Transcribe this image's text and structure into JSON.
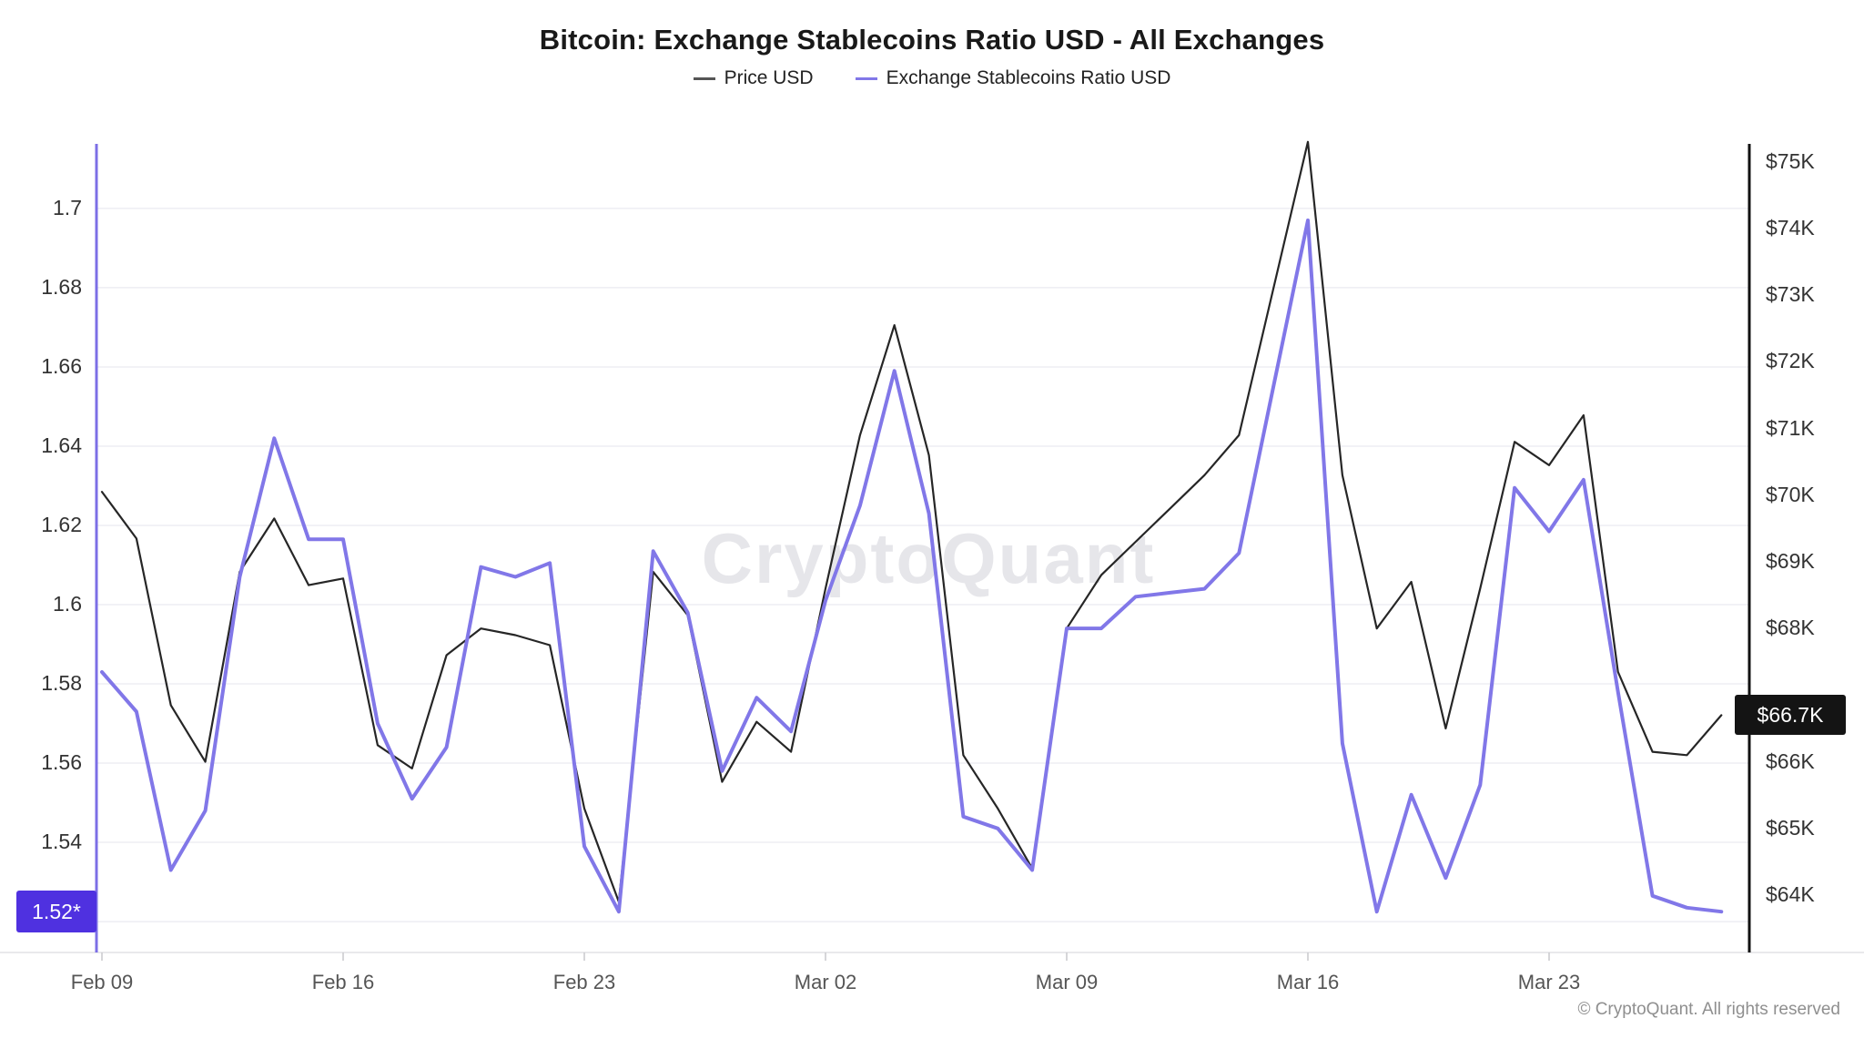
{
  "title": "Bitcoin: Exchange Stablecoins Ratio USD - All Exchanges",
  "legend": [
    {
      "label": "Price USD",
      "color": "#555555"
    },
    {
      "label": "Exchange Stablecoins Ratio USD",
      "color": "#8177e8"
    }
  ],
  "watermark": "CryptoQuant",
  "copyright": "© CryptoQuant. All rights reserved",
  "left_axis": {
    "badge": "1.52*",
    "badge_value": 1.5225,
    "badge_color": "#4f31e0",
    "ticks": [
      {
        "label": "1.7",
        "value": 1.7
      },
      {
        "label": "1.68",
        "value": 1.68
      },
      {
        "label": "1.66",
        "value": 1.66
      },
      {
        "label": "1.64",
        "value": 1.64
      },
      {
        "label": "1.62",
        "value": 1.62
      },
      {
        "label": "1.6",
        "value": 1.6
      },
      {
        "label": "1.58",
        "value": 1.58
      },
      {
        "label": "1.56",
        "value": 1.56
      },
      {
        "label": "1.54",
        "value": 1.54
      }
    ],
    "extra_grid_values": [
      1.52
    ],
    "axis_color": "#7c6fe6"
  },
  "right_axis": {
    "badge": "$66.7K",
    "badge_value": 66.7,
    "badge_color": "#141414",
    "ticks": [
      {
        "label": "$75K",
        "value": 75
      },
      {
        "label": "$74K",
        "value": 74
      },
      {
        "label": "$73K",
        "value": 73
      },
      {
        "label": "$72K",
        "value": 72
      },
      {
        "label": "$71K",
        "value": 71
      },
      {
        "label": "$70K",
        "value": 70
      },
      {
        "label": "$69K",
        "value": 69
      },
      {
        "label": "$68K",
        "value": 68
      },
      {
        "label": "$66K",
        "value": 66
      },
      {
        "label": "$65K",
        "value": 65
      },
      {
        "label": "$64K",
        "value": 64
      }
    ],
    "axis_color": "#111111"
  },
  "x_axis": {
    "ticks": [
      {
        "label": "Feb 09",
        "day": 0
      },
      {
        "label": "Feb 16",
        "day": 7
      },
      {
        "label": "Feb 23",
        "day": 14
      },
      {
        "label": "Mar 02",
        "day": 21
      },
      {
        "label": "Mar 09",
        "day": 28
      },
      {
        "label": "Mar 16",
        "day": 35
      },
      {
        "label": "Mar 23",
        "day": 42
      }
    ]
  },
  "chart_data": {
    "type": "line",
    "x": [
      "Feb 09",
      "Feb 10",
      "Feb 11",
      "Feb 12",
      "Feb 13",
      "Feb 14",
      "Feb 15",
      "Feb 16",
      "Feb 17",
      "Feb 18",
      "Feb 19",
      "Feb 20",
      "Feb 21",
      "Feb 22",
      "Feb 23",
      "Feb 24",
      "Feb 25",
      "Feb 26",
      "Feb 27",
      "Feb 28",
      "Mar 01",
      "Mar 02",
      "Mar 03",
      "Mar 04",
      "Mar 05",
      "Mar 06",
      "Mar 07",
      "Mar 08",
      "Mar 09",
      "Mar 10",
      "Mar 11",
      "Mar 12",
      "Mar 13",
      "Mar 14",
      "Mar 15",
      "Mar 16",
      "Mar 17",
      "Mar 18",
      "Mar 19",
      "Mar 20",
      "Mar 21",
      "Mar 22",
      "Mar 23",
      "Mar 24",
      "Mar 25",
      "Mar 26",
      "Mar 27",
      "Mar 28"
    ],
    "title": "Bitcoin: Exchange Stablecoins Ratio USD - All Exchanges",
    "legend_position": "top",
    "grid": "horizontal-light",
    "left_ylabel": "Exchange Stablecoins Ratio USD",
    "right_ylabel": "Price USD ($K)",
    "left_range": [
      1.5122,
      1.7163
    ],
    "right_range": [
      63.14,
      75.27
    ],
    "series": [
      {
        "name": "Price USD",
        "axis": "right",
        "unit": "K USD",
        "color": "#262626",
        "width": 2.2,
        "values": [
          70.05,
          69.35,
          66.85,
          66.0,
          68.85,
          69.65,
          68.65,
          68.75,
          66.25,
          65.9,
          67.6,
          68.0,
          67.9,
          67.75,
          65.3,
          63.9,
          68.85,
          68.2,
          65.7,
          66.6,
          66.15,
          68.6,
          70.9,
          72.55,
          70.6,
          66.1,
          65.3,
          64.4,
          68.0,
          68.8,
          69.3,
          69.8,
          70.3,
          70.9,
          73.1,
          75.3,
          70.3,
          68.0,
          68.7,
          66.5,
          68.6,
          70.8,
          70.45,
          71.2,
          67.35,
          66.15,
          66.1,
          66.7
        ]
      },
      {
        "name": "Exchange Stablecoins Ratio USD",
        "axis": "left",
        "unit": "ratio",
        "color": "#8177e8",
        "width": 4,
        "values": [
          1.583,
          1.573,
          1.533,
          1.548,
          1.607,
          1.642,
          1.6165,
          1.6165,
          1.57,
          1.551,
          1.564,
          1.6095,
          1.607,
          1.6105,
          1.539,
          1.5225,
          1.6135,
          1.598,
          1.558,
          1.5765,
          1.568,
          1.601,
          1.625,
          1.659,
          1.623,
          1.5465,
          1.5435,
          1.533,
          1.594,
          1.594,
          1.602,
          1.603,
          1.604,
          1.613,
          1.655,
          1.697,
          1.565,
          1.5225,
          1.552,
          1.531,
          1.5545,
          1.6295,
          1.6185,
          1.6315,
          1.578,
          1.5265,
          1.5235,
          1.5225
        ]
      }
    ]
  }
}
